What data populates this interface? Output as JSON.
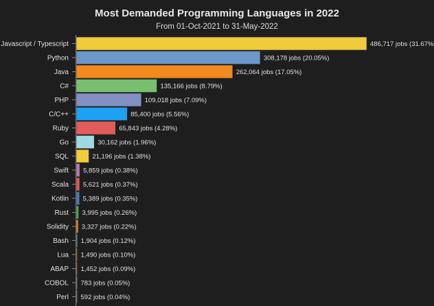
{
  "chart_data": {
    "type": "bar",
    "orientation": "horizontal",
    "title": "Most Demanded Programming Languages in 2022",
    "subtitle": "From 01-Oct-2021 to 31-May-2022",
    "xlabel": "",
    "ylabel": "",
    "grid": false,
    "legend": "none",
    "xlim": [
      0,
      486717
    ],
    "categories": [
      "Javascript / Typescript",
      "Python",
      "Java",
      "C#",
      "PHP",
      "C/C++",
      "Ruby",
      "Go",
      "SQL",
      "Swift",
      "Scala",
      "Kotlin",
      "Rust",
      "Solidity",
      "Bash",
      "Lua",
      "ABAP",
      "COBOL",
      "Perl"
    ],
    "values": [
      486717,
      308178,
      262064,
      135166,
      109018,
      85400,
      65843,
      30162,
      21196,
      5859,
      5621,
      5389,
      3995,
      3327,
      1904,
      1490,
      1452,
      783,
      592
    ],
    "percentages": [
      "31.67%",
      "20.05%",
      "17.05%",
      "8.79%",
      "7.09%",
      "5.56%",
      "4.28%",
      "1.96%",
      "1.38%",
      "0.38%",
      "0.37%",
      "0.35%",
      "0.26%",
      "0.22%",
      "0.12%",
      "0.10%",
      "0.09%",
      "0.05%",
      "0.04%"
    ],
    "data_labels": [
      "486,717 jobs (31.67%)",
      "308,178 jobs (20.05%)",
      "262,064 jobs (17.05%)",
      "135,166 jobs (8.79%)",
      "109,018 jobs (7.09%)",
      "85,400 jobs (5.56%)",
      "65,843 jobs (4.28%)",
      "30,162 jobs (1.96%)",
      "21,196 jobs (1.38%)",
      "5,859 jobs (0.38%)",
      "5,621 jobs (0.37%)",
      "5,389 jobs (0.35%)",
      "3,995 jobs (0.26%)",
      "3,327 jobs (0.22%)",
      "1,904 jobs (0.12%)",
      "1,490 jobs (0.10%)",
      "1,452 jobs (0.09%)",
      "783 jobs (0.05%)",
      "592 jobs (0.04%)"
    ],
    "colors": [
      "#f0cc3c",
      "#6b98c8",
      "#f28a1e",
      "#78c070",
      "#8390c4",
      "#1da1f2",
      "#e25c5c",
      "#9fd9e3",
      "#f0cc3c",
      "#b978b8",
      "#e05858",
      "#4a78b8",
      "#4caa4c",
      "#e8882a",
      "#5a9a9a",
      "#b86e2e",
      "#b86e2e",
      "#888888",
      "#888888"
    ]
  }
}
